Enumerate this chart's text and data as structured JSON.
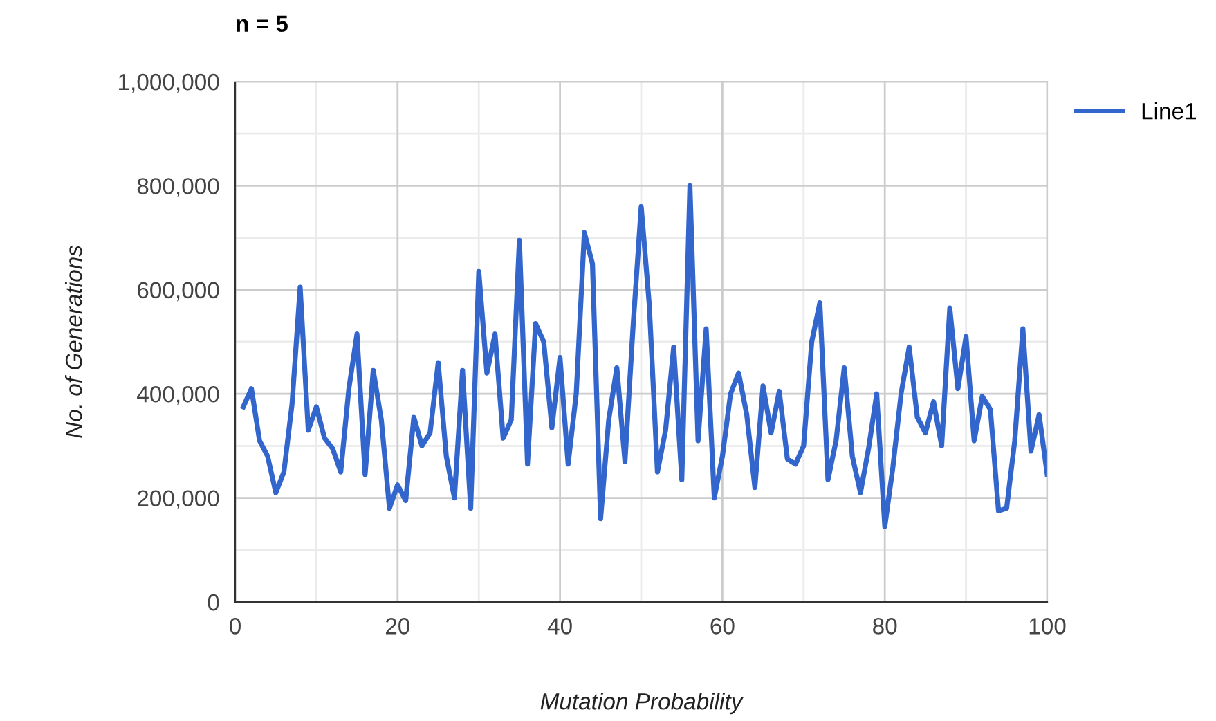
{
  "chart_data": {
    "type": "line",
    "title": "n = 5",
    "xlabel": "Mutation Probability",
    "ylabel": "No. of Generations",
    "x": [
      1,
      2,
      3,
      4,
      5,
      6,
      7,
      8,
      9,
      10,
      11,
      12,
      13,
      14,
      15,
      16,
      17,
      18,
      19,
      20,
      21,
      22,
      23,
      24,
      25,
      26,
      27,
      28,
      29,
      30,
      31,
      32,
      33,
      34,
      35,
      36,
      37,
      38,
      39,
      40,
      41,
      42,
      43,
      44,
      45,
      46,
      47,
      48,
      49,
      50,
      51,
      52,
      53,
      54,
      55,
      56,
      57,
      58,
      59,
      60,
      61,
      62,
      63,
      64,
      65,
      66,
      67,
      68,
      69,
      70,
      71,
      72,
      73,
      74,
      75,
      76,
      77,
      78,
      79,
      80,
      81,
      82,
      83,
      84,
      85,
      86,
      87,
      88,
      89,
      90,
      91,
      92,
      93,
      94,
      95,
      96,
      97,
      98,
      99,
      100
    ],
    "series": [
      {
        "name": "Line1",
        "color": "#3366cc",
        "values": [
          375000,
          410000,
          310000,
          280000,
          210000,
          250000,
          380000,
          605000,
          330000,
          375000,
          315000,
          295000,
          250000,
          410000,
          515000,
          245000,
          445000,
          350000,
          180000,
          225000,
          195000,
          355000,
          300000,
          325000,
          460000,
          280000,
          200000,
          445000,
          180000,
          635000,
          440000,
          515000,
          315000,
          350000,
          695000,
          265000,
          535000,
          500000,
          335000,
          470000,
          265000,
          400000,
          710000,
          650000,
          160000,
          350000,
          450000,
          270000,
          530000,
          760000,
          570000,
          250000,
          330000,
          490000,
          235000,
          800000,
          310000,
          525000,
          200000,
          280000,
          400000,
          440000,
          360000,
          220000,
          415000,
          325000,
          405000,
          275000,
          265000,
          300000,
          500000,
          575000,
          235000,
          310000,
          450000,
          280000,
          210000,
          295000,
          400000,
          145000,
          260000,
          400000,
          490000,
          355000,
          325000,
          385000,
          300000,
          565000,
          410000,
          510000,
          310000,
          395000,
          370000,
          175000,
          180000,
          310000,
          525000,
          290000,
          360000,
          245000
        ]
      }
    ],
    "xlim": [
      0,
      100
    ],
    "xticks": [
      0,
      20,
      40,
      60,
      80,
      100
    ],
    "ylim": [
      0,
      1000000
    ],
    "yticks": [
      0,
      {
        "value": 200000,
        "label": "200,000"
      },
      {
        "value": 400000,
        "label": "400,000"
      },
      {
        "value": 600000,
        "label": "600,000"
      },
      {
        "value": 800000,
        "label": "800,000"
      },
      {
        "value": 1000000,
        "label": "1,000,000"
      }
    ],
    "grid": true,
    "legend": "right",
    "marker": "none",
    "line_style": "solid"
  }
}
